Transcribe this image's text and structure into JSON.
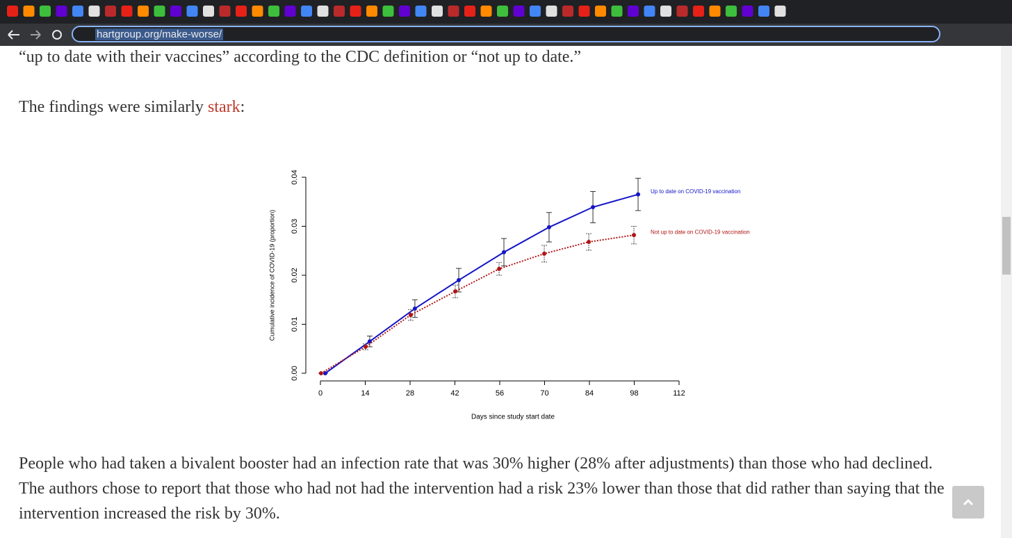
{
  "browser": {
    "url": "hartgroup.org/make-worse/"
  },
  "article": {
    "paragraph_top": "“up to date with their vaccines” according to the CDC definition or “not up to date.”",
    "findings_text": "The findings were similarly ",
    "findings_link": "stark",
    "findings_end": ":",
    "paragraph_bottom": "People who had taken a bivalent booster had an infection rate that was 30% higher (28% after adjustments) than those who had declined. The authors chose to report that those who had not had the intervention had a risk 23% lower than those that did rather than saying that the intervention increased the risk by 30%."
  },
  "chart": {
    "type": "line",
    "xlabel": "Days since study start date",
    "ylabel": "Cumulative incidence of COVID-19 (proportion)",
    "xlim": [
      0,
      112
    ],
    "ylim": [
      0,
      0.04
    ],
    "xticks": [
      0,
      14,
      28,
      42,
      56,
      70,
      84,
      98,
      112
    ],
    "yticks": [
      {
        "value": 0,
        "label": "0.00"
      },
      0.01,
      0.02,
      0.03,
      0.04
    ],
    "series": [
      {
        "name": "Up to date on COVID-19 vaccination",
        "color": "#1414c8",
        "x": [
          1.5,
          15.4,
          29.5,
          43.2,
          57.3,
          71.4,
          85.1,
          99.2
        ],
        "values": [
          0,
          0.0065,
          0.0132,
          0.019,
          0.0247,
          0.0298,
          0.0339,
          0.0365
        ],
        "errors": [
          0,
          0.0011,
          0.0018,
          0.0024,
          0.0028,
          0.003,
          0.0032,
          0.0033
        ]
      },
      {
        "name": "Not up to date on COVID-19 vaccination",
        "color": "#b01414",
        "x": [
          0.2,
          14.1,
          28.2,
          42.1,
          55.8,
          69.9,
          83.8,
          97.9
        ],
        "values": [
          0,
          0.0054,
          0.0119,
          0.0167,
          0.0213,
          0.0244,
          0.0268,
          0.0282
        ],
        "errors": [
          0,
          0.0006,
          0.0011,
          0.0013,
          0.0013,
          0.0017,
          0.0017,
          0.0018
        ]
      }
    ]
  }
}
